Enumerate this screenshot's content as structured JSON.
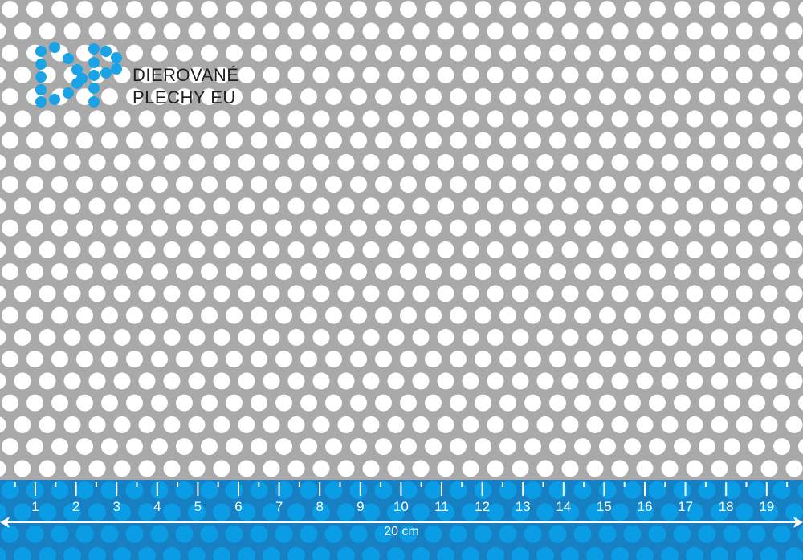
{
  "brand": {
    "line1": "DIEROVANÉ",
    "line2": "PLECHY EU",
    "logo_letters": "DP"
  },
  "ruler": {
    "labels": [
      "1",
      "2",
      "3",
      "4",
      "5",
      "6",
      "7",
      "8",
      "9",
      "10",
      "11",
      "12",
      "13",
      "14",
      "15",
      "16",
      "17",
      "18",
      "19"
    ],
    "length_label": "20 cm"
  },
  "colors": {
    "sheet": "#a9a9a9",
    "hole": "#ffffff",
    "ruler_band": "#1787c9",
    "ruler_hole": "#0a9de6",
    "logo": "#1aa3e6",
    "text": "#1e1e1e"
  }
}
